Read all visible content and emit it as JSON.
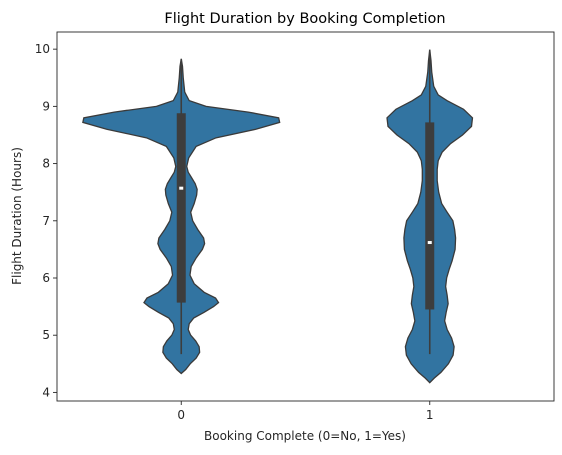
{
  "chart_data": {
    "type": "violin",
    "title": "Flight Duration by Booking Completion",
    "xlabel": "Booking Complete (0=No, 1=Yes)",
    "ylabel": "Flight Duration (Hours)",
    "categories": [
      "0",
      "1"
    ],
    "y_ticks": [
      "4",
      "5",
      "6",
      "7",
      "8",
      "9",
      "10"
    ],
    "ylim": [
      3.85,
      10.3
    ],
    "xlim": [
      -0.5,
      1.5
    ],
    "grid": false,
    "colors": {
      "violin": "#3274a1",
      "edge": "#3a3a3a",
      "box": "#3d3d3d",
      "median": "#ffffff"
    },
    "violins": [
      {
        "category": "0",
        "min": 4.67,
        "q1": 5.57,
        "median": 7.57,
        "q3": 8.88,
        "max": 9.83,
        "density": [
          [
            4.33,
            0.0
          ],
          [
            4.4,
            0.018
          ],
          [
            4.5,
            0.036
          ],
          [
            4.6,
            0.06
          ],
          [
            4.7,
            0.074
          ],
          [
            4.8,
            0.072
          ],
          [
            4.9,
            0.058
          ],
          [
            5.0,
            0.038
          ],
          [
            5.1,
            0.028
          ],
          [
            5.2,
            0.032
          ],
          [
            5.3,
            0.05
          ],
          [
            5.4,
            0.092
          ],
          [
            5.5,
            0.13
          ],
          [
            5.57,
            0.15
          ],
          [
            5.65,
            0.138
          ],
          [
            5.75,
            0.092
          ],
          [
            5.9,
            0.052
          ],
          [
            6.05,
            0.035
          ],
          [
            6.2,
            0.04
          ],
          [
            6.35,
            0.06
          ],
          [
            6.5,
            0.085
          ],
          [
            6.6,
            0.094
          ],
          [
            6.7,
            0.09
          ],
          [
            6.85,
            0.066
          ],
          [
            7.0,
            0.046
          ],
          [
            7.15,
            0.038
          ],
          [
            7.3,
            0.052
          ],
          [
            7.45,
            0.062
          ],
          [
            7.55,
            0.064
          ],
          [
            7.65,
            0.056
          ],
          [
            7.75,
            0.042
          ],
          [
            7.85,
            0.028
          ],
          [
            7.95,
            0.022
          ],
          [
            8.1,
            0.03
          ],
          [
            8.3,
            0.06
          ],
          [
            8.45,
            0.14
          ],
          [
            8.6,
            0.3
          ],
          [
            8.72,
            0.396
          ],
          [
            8.8,
            0.392
          ],
          [
            8.9,
            0.27
          ],
          [
            9.0,
            0.1
          ],
          [
            9.1,
            0.032
          ],
          [
            9.25,
            0.014
          ],
          [
            9.5,
            0.008
          ],
          [
            9.7,
            0.005
          ],
          [
            9.83,
            0.0
          ]
        ]
      },
      {
        "category": "1",
        "min": 4.67,
        "q1": 5.45,
        "median": 6.62,
        "q3": 8.72,
        "max": 9.99,
        "density": [
          [
            4.17,
            0.0
          ],
          [
            4.25,
            0.018
          ],
          [
            4.35,
            0.045
          ],
          [
            4.5,
            0.075
          ],
          [
            4.65,
            0.094
          ],
          [
            4.8,
            0.098
          ],
          [
            4.95,
            0.088
          ],
          [
            5.1,
            0.07
          ],
          [
            5.25,
            0.06
          ],
          [
            5.4,
            0.066
          ],
          [
            5.55,
            0.074
          ],
          [
            5.7,
            0.07
          ],
          [
            5.85,
            0.064
          ],
          [
            6.0,
            0.068
          ],
          [
            6.15,
            0.078
          ],
          [
            6.3,
            0.09
          ],
          [
            6.5,
            0.102
          ],
          [
            6.7,
            0.104
          ],
          [
            6.85,
            0.1
          ],
          [
            7.0,
            0.093
          ],
          [
            7.15,
            0.07
          ],
          [
            7.3,
            0.048
          ],
          [
            7.5,
            0.036
          ],
          [
            7.7,
            0.03
          ],
          [
            7.9,
            0.03
          ],
          [
            8.05,
            0.034
          ],
          [
            8.2,
            0.05
          ],
          [
            8.35,
            0.084
          ],
          [
            8.5,
            0.132
          ],
          [
            8.65,
            0.168
          ],
          [
            8.8,
            0.172
          ],
          [
            8.95,
            0.136
          ],
          [
            9.1,
            0.07
          ],
          [
            9.2,
            0.034
          ],
          [
            9.35,
            0.016
          ],
          [
            9.6,
            0.008
          ],
          [
            9.8,
            0.005
          ],
          [
            9.99,
            0.0
          ]
        ]
      }
    ]
  }
}
